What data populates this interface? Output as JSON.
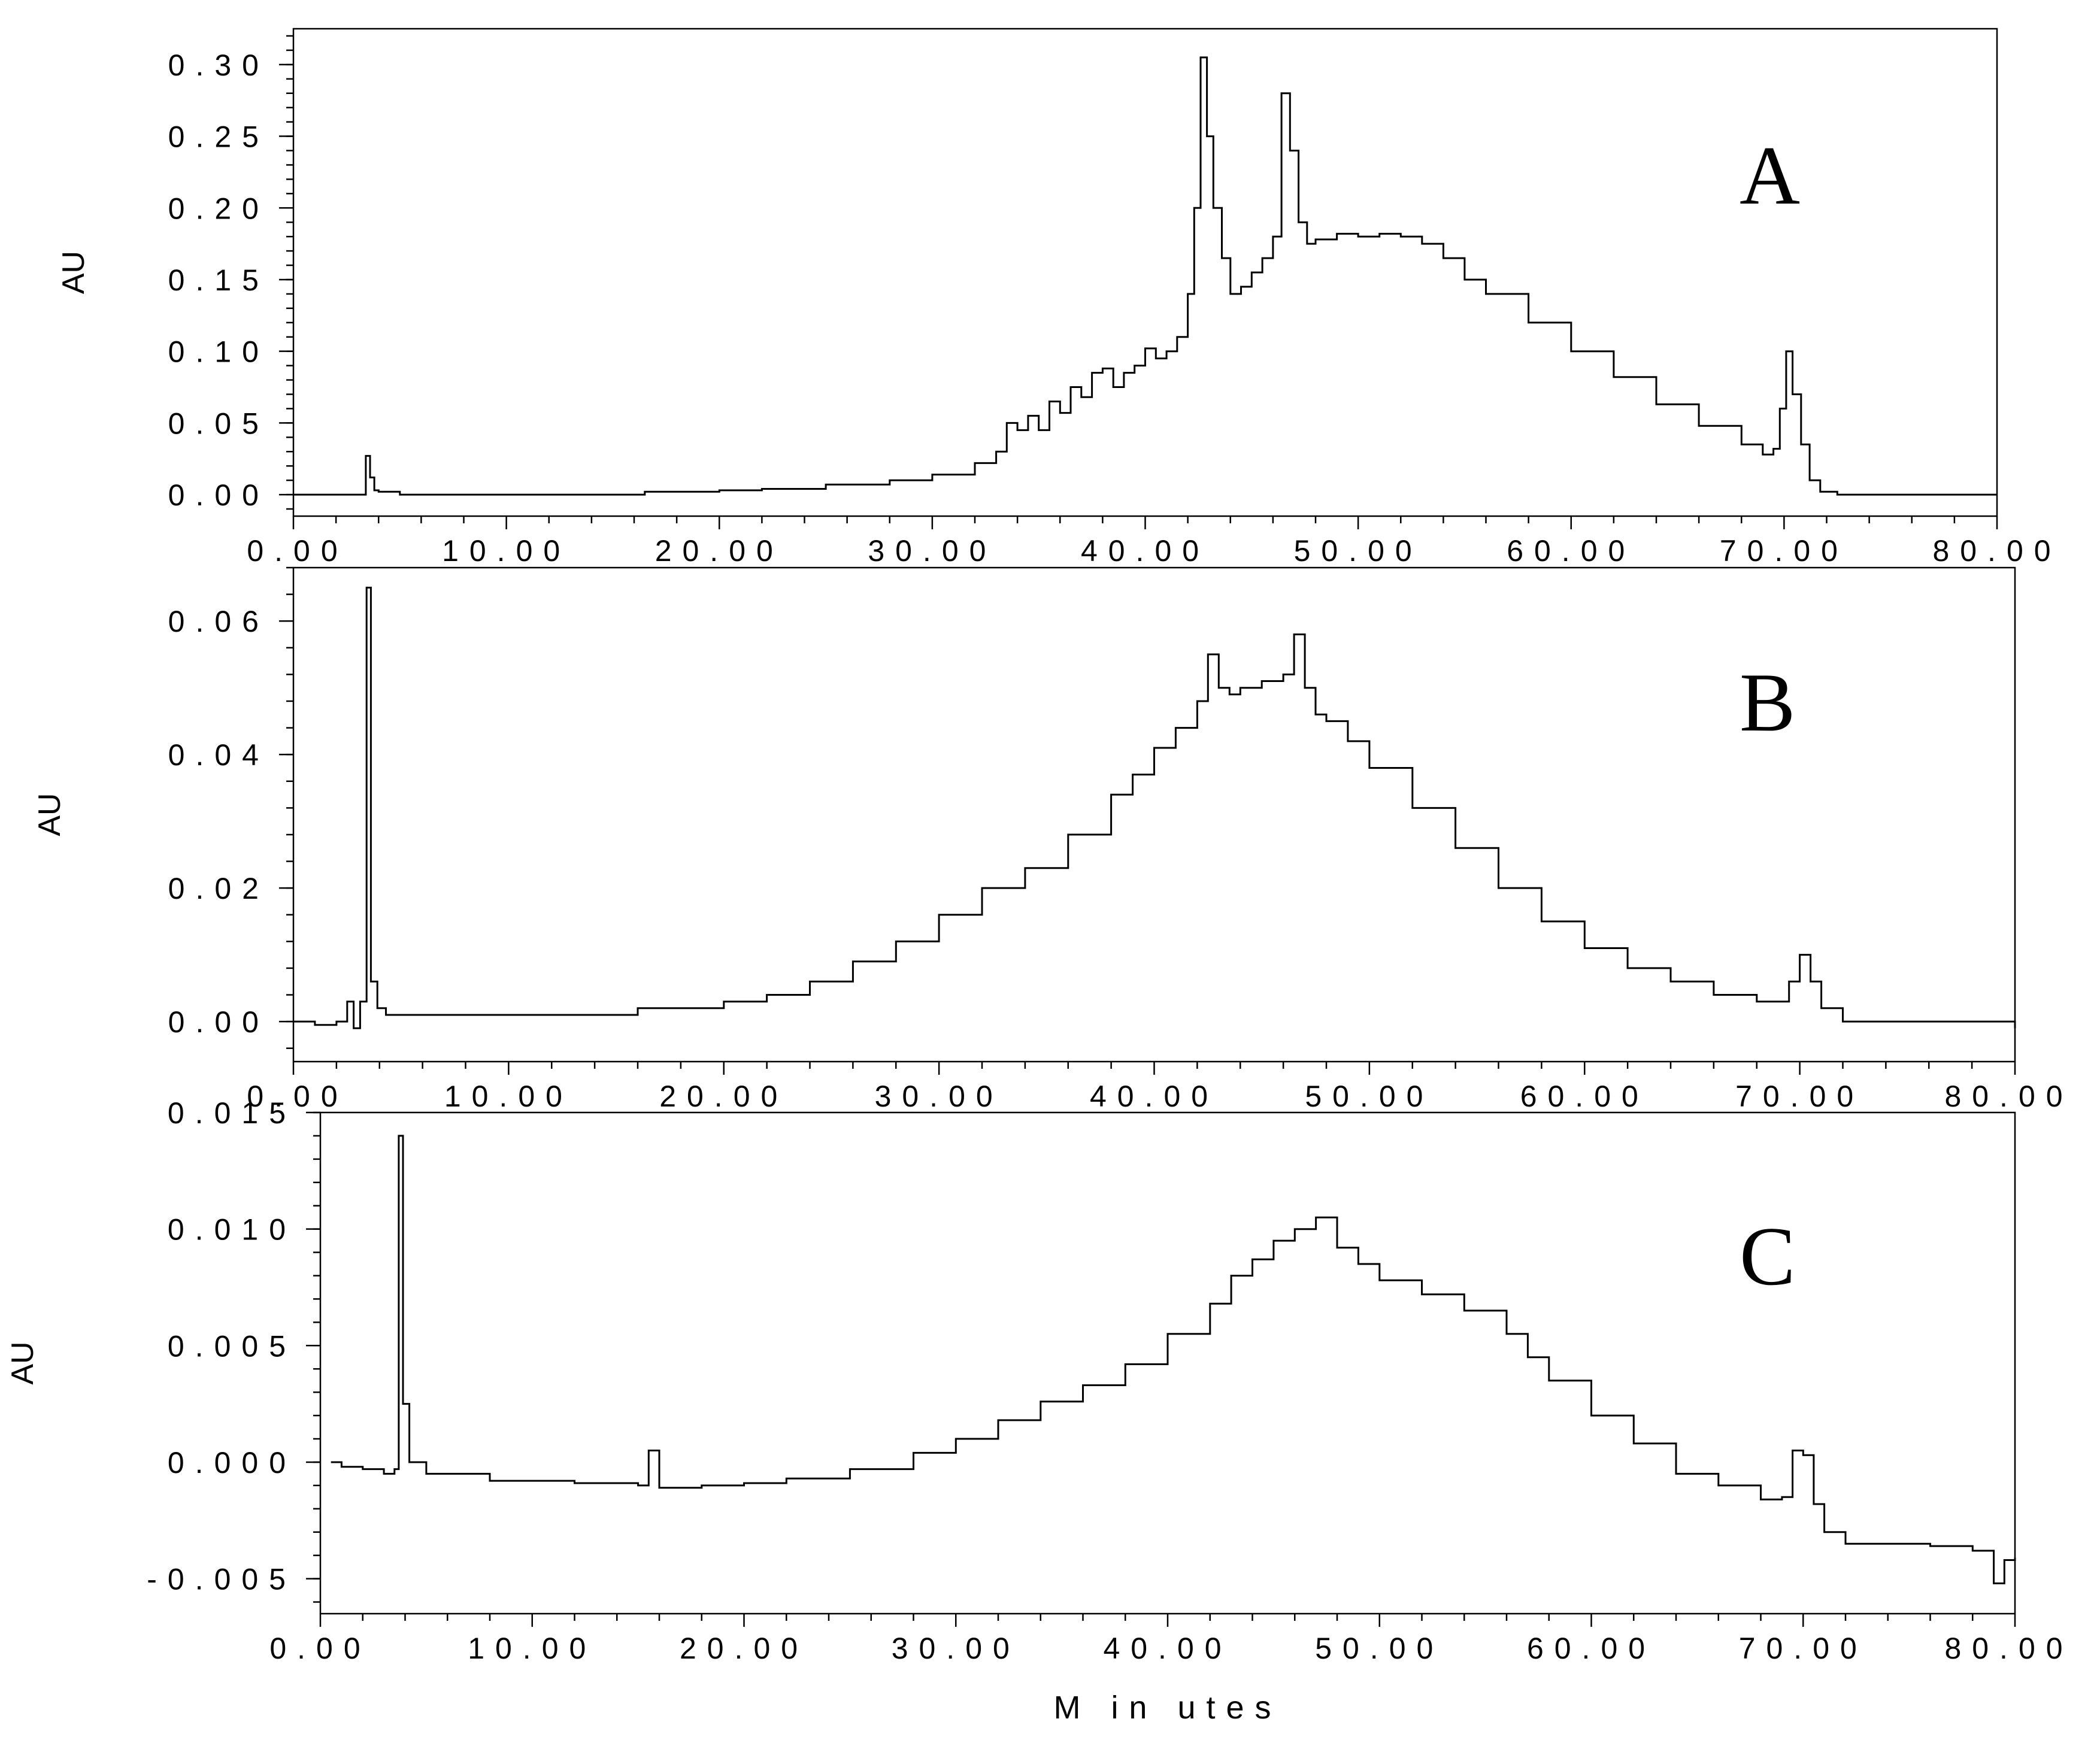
{
  "chart_data": [
    {
      "type": "line",
      "panel_label": "A",
      "xlabel": "",
      "ylabel": "AU",
      "xlim": [
        0,
        80
      ],
      "ylim": [
        -0.015,
        0.325
      ],
      "x_ticks": [
        0,
        10,
        20,
        30,
        40,
        50,
        60,
        70,
        80
      ],
      "x_tick_labels": [
        "0.00",
        "10.00",
        "20.00",
        "30.00",
        "40.00",
        "50.00",
        "60.00",
        "70.00",
        "80.00"
      ],
      "y_ticks": [
        0,
        0.05,
        0.1,
        0.15,
        0.2,
        0.25,
        0.3
      ],
      "y_tick_labels": [
        "0.00",
        "0.05",
        "0.10",
        "0.15",
        "0.20",
        "0.25",
        "0.30"
      ],
      "grid": false,
      "series": [
        {
          "x": [
            0,
            3.2,
            3.4,
            3.6,
            3.8,
            4.0,
            5,
            10,
            15,
            16.5,
            20,
            22,
            25,
            28,
            30,
            32,
            33,
            33.5,
            34,
            34.5,
            35,
            35.5,
            36,
            36.5,
            37,
            37.5,
            38,
            38.5,
            39,
            39.5,
            40,
            40.5,
            41,
            41.5,
            42,
            42.3,
            42.6,
            42.9,
            43.2,
            43.6,
            44,
            44.5,
            45,
            45.5,
            46,
            46.4,
            46.8,
            47.2,
            47.6,
            48,
            49,
            50,
            51,
            52,
            53,
            54,
            55,
            56,
            58,
            60,
            62,
            64,
            66,
            68,
            69,
            69.5,
            69.8,
            70.1,
            70.4,
            70.8,
            71.2,
            71.7,
            72.5,
            75,
            80
          ],
          "y": [
            0,
            0,
            0.027,
            0.012,
            0.003,
            0.002,
            0,
            0,
            0,
            0.002,
            0.003,
            0.004,
            0.007,
            0.01,
            0.014,
            0.022,
            0.03,
            0.05,
            0.045,
            0.055,
            0.045,
            0.065,
            0.057,
            0.075,
            0.068,
            0.085,
            0.088,
            0.075,
            0.085,
            0.09,
            0.102,
            0.095,
            0.1,
            0.11,
            0.14,
            0.2,
            0.305,
            0.25,
            0.2,
            0.165,
            0.14,
            0.145,
            0.155,
            0.165,
            0.18,
            0.28,
            0.24,
            0.19,
            0.175,
            0.178,
            0.182,
            0.18,
            0.182,
            0.18,
            0.175,
            0.165,
            0.15,
            0.14,
            0.12,
            0.1,
            0.082,
            0.063,
            0.048,
            0.035,
            0.028,
            0.032,
            0.06,
            0.1,
            0.07,
            0.035,
            0.01,
            0.002,
            0,
            0,
            0
          ]
        }
      ]
    },
    {
      "type": "line",
      "panel_label": "B",
      "xlabel": "",
      "ylabel": "AU",
      "xlim": [
        0,
        80
      ],
      "ylim": [
        -0.006,
        0.068
      ],
      "x_ticks": [
        0,
        10,
        20,
        30,
        40,
        50,
        60,
        70,
        80
      ],
      "x_tick_labels": [
        "0.00",
        "10.00",
        "20.00",
        "30.00",
        "40.00",
        "50.00",
        "60.00",
        "70.00",
        "80.00"
      ],
      "y_ticks": [
        0,
        0.02,
        0.04,
        0.06
      ],
      "y_tick_labels": [
        "0.00",
        "0.02",
        "0.04",
        "0.06"
      ],
      "grid": false,
      "series": [
        {
          "x": [
            0,
            1,
            2,
            2.5,
            2.8,
            3.1,
            3.4,
            3.6,
            3.9,
            4.3,
            5,
            8,
            12,
            16,
            20,
            22,
            24,
            26,
            28,
            30,
            32,
            34,
            36,
            38,
            39,
            40,
            41,
            42,
            42.5,
            43,
            43.5,
            44,
            45,
            46,
            46.5,
            47,
            47.5,
            48,
            49,
            50,
            52,
            54,
            56,
            58,
            60,
            62,
            64,
            66,
            68,
            69,
            69.5,
            70,
            70.5,
            71,
            72,
            75,
            80
          ],
          "y": [
            0,
            -0.0005,
            0,
            0.003,
            -0.001,
            0.003,
            0.065,
            0.006,
            0.002,
            0.001,
            0.001,
            0.001,
            0.001,
            0.002,
            0.003,
            0.004,
            0.006,
            0.009,
            0.012,
            0.016,
            0.02,
            0.023,
            0.028,
            0.034,
            0.037,
            0.041,
            0.044,
            0.048,
            0.055,
            0.05,
            0.049,
            0.05,
            0.051,
            0.052,
            0.058,
            0.05,
            0.046,
            0.045,
            0.042,
            0.038,
            0.032,
            0.026,
            0.02,
            0.015,
            0.011,
            0.008,
            0.006,
            0.004,
            0.003,
            0.003,
            0.006,
            0.01,
            0.006,
            0.002,
            0,
            0,
            -0.001
          ]
        }
      ]
    },
    {
      "type": "line",
      "panel_label": "C",
      "xlabel": "M in utes",
      "ylabel": "AU",
      "xlim": [
        0,
        80
      ],
      "ylim": [
        -0.0065,
        0.015
      ],
      "x_ticks": [
        0,
        10,
        20,
        30,
        40,
        50,
        60,
        70,
        80
      ],
      "x_tick_labels": [
        "0.00",
        "10.00",
        "20.00",
        "30.00",
        "40.00",
        "50.00",
        "60.00",
        "70.00",
        "80.00"
      ],
      "y_ticks": [
        -0.005,
        0,
        0.005,
        0.01,
        0.015
      ],
      "y_tick_labels": [
        "-0.005",
        "0.000",
        "0.005",
        "0.010",
        "0.015"
      ],
      "grid": false,
      "series": [
        {
          "x": [
            0.5,
            1,
            2,
            3,
            3.5,
            3.7,
            3.9,
            4.2,
            5,
            8,
            12,
            15,
            15.5,
            16,
            18,
            20,
            22,
            25,
            28,
            30,
            32,
            34,
            36,
            38,
            40,
            42,
            43,
            44,
            45,
            46,
            47,
            48,
            49,
            50,
            52,
            54,
            56,
            57,
            58,
            60,
            62,
            64,
            66,
            68,
            69,
            69.5,
            70,
            70.5,
            71,
            72,
            74,
            76,
            78,
            79,
            79.5,
            80
          ],
          "y": [
            0,
            -0.0002,
            -0.0003,
            -0.0005,
            -0.0003,
            0.014,
            0.0025,
            0,
            -0.0005,
            -0.0008,
            -0.0009,
            -0.001,
            0.0005,
            -0.0011,
            -0.001,
            -0.0009,
            -0.0007,
            -0.0003,
            0.0004,
            0.001,
            0.0018,
            0.0026,
            0.0033,
            0.0042,
            0.0055,
            0.0068,
            0.008,
            0.0087,
            0.0095,
            0.01,
            0.0105,
            0.0092,
            0.0085,
            0.0078,
            0.0072,
            0.0065,
            0.0055,
            0.0045,
            0.0035,
            0.002,
            0.0008,
            -0.0005,
            -0.001,
            -0.0016,
            -0.0015,
            0.0005,
            0.0003,
            -0.0018,
            -0.003,
            -0.0035,
            -0.0035,
            -0.0036,
            -0.0038,
            -0.0052,
            -0.0042,
            -0.0041
          ]
        }
      ]
    }
  ]
}
